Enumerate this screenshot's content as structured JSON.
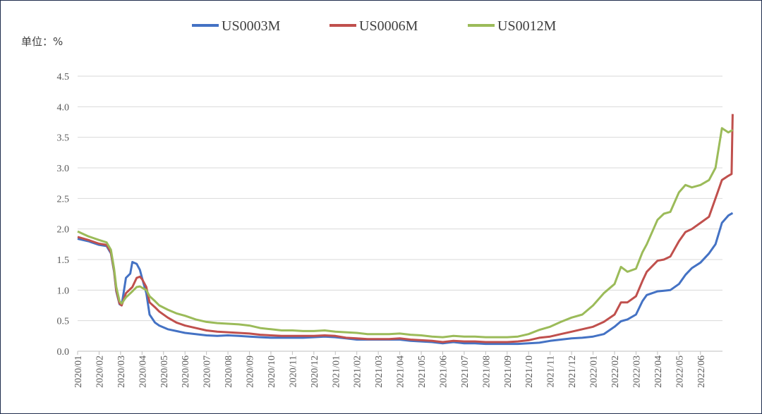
{
  "chart_data": {
    "type": "line",
    "unit_label": "单位：%",
    "x_tick_labels": [
      "2020/01",
      "2020/02",
      "2020/03",
      "2020/04",
      "2020/05",
      "2020/06",
      "2020/07",
      "2020/08",
      "2020/09",
      "2020/10",
      "2020/11",
      "2020/12",
      "2021/01",
      "2021/02",
      "2021/03",
      "2021/04",
      "2021/05",
      "2021/06",
      "2021/07",
      "2021/08",
      "2021/09",
      "2021/10",
      "2021/11",
      "2021/12",
      "2022/01",
      "2022/02",
      "2022/03",
      "2022/04",
      "2022/05",
      "2022/06"
    ],
    "y_tick_labels": [
      "0.0",
      "0.5",
      "1.0",
      "1.5",
      "2.0",
      "2.5",
      "3.0",
      "3.5",
      "4.0",
      "4.5"
    ],
    "ylim": [
      0,
      4.5
    ],
    "grid": true,
    "legend_position": "top",
    "series": [
      {
        "name": "US0003M",
        "color": "#4472c4",
        "points": [
          [
            0,
            1.84
          ],
          [
            0.5,
            1.8
          ],
          [
            1,
            1.74
          ],
          [
            1.35,
            1.72
          ],
          [
            1.55,
            1.6
          ],
          [
            1.7,
            1.3
          ],
          [
            1.8,
            0.98
          ],
          [
            1.95,
            0.77
          ],
          [
            2.05,
            0.75
          ],
          [
            2.25,
            1.2
          ],
          [
            2.45,
            1.27
          ],
          [
            2.55,
            1.46
          ],
          [
            2.75,
            1.43
          ],
          [
            2.9,
            1.33
          ],
          [
            3.0,
            1.2
          ],
          [
            3.2,
            0.95
          ],
          [
            3.35,
            0.6
          ],
          [
            3.6,
            0.47
          ],
          [
            3.8,
            0.42
          ],
          [
            4.2,
            0.36
          ],
          [
            4.6,
            0.33
          ],
          [
            5.0,
            0.3
          ],
          [
            5.5,
            0.28
          ],
          [
            6.0,
            0.26
          ],
          [
            6.5,
            0.25
          ],
          [
            7.0,
            0.26
          ],
          [
            7.5,
            0.25
          ],
          [
            8.0,
            0.24
          ],
          [
            8.5,
            0.23
          ],
          [
            9.0,
            0.22
          ],
          [
            9.5,
            0.22
          ],
          [
            10,
            0.22
          ],
          [
            10.5,
            0.22
          ],
          [
            11,
            0.23
          ],
          [
            11.5,
            0.24
          ],
          [
            12,
            0.23
          ],
          [
            12.5,
            0.21
          ],
          [
            13,
            0.19
          ],
          [
            13.5,
            0.19
          ],
          [
            14,
            0.19
          ],
          [
            14.5,
            0.19
          ],
          [
            15,
            0.19
          ],
          [
            15.5,
            0.17
          ],
          [
            16,
            0.16
          ],
          [
            16.5,
            0.15
          ],
          [
            17,
            0.13
          ],
          [
            17.5,
            0.15
          ],
          [
            18,
            0.13
          ],
          [
            18.5,
            0.13
          ],
          [
            19,
            0.12
          ],
          [
            19.5,
            0.12
          ],
          [
            20,
            0.12
          ],
          [
            20.5,
            0.12
          ],
          [
            21,
            0.13
          ],
          [
            21.5,
            0.14
          ],
          [
            22,
            0.17
          ],
          [
            22.5,
            0.19
          ],
          [
            23,
            0.21
          ],
          [
            23.5,
            0.22
          ],
          [
            24,
            0.24
          ],
          [
            24.5,
            0.28
          ],
          [
            25,
            0.4
          ],
          [
            25.3,
            0.49
          ],
          [
            25.6,
            0.52
          ],
          [
            26,
            0.6
          ],
          [
            26.3,
            0.82
          ],
          [
            26.5,
            0.92
          ],
          [
            27,
            0.98
          ],
          [
            27.3,
            0.99
          ],
          [
            27.6,
            1.0
          ],
          [
            28,
            1.1
          ],
          [
            28.3,
            1.25
          ],
          [
            28.6,
            1.36
          ],
          [
            29,
            1.45
          ],
          [
            29.4,
            1.6
          ],
          [
            29.7,
            1.75
          ],
          [
            30.0,
            2.1
          ],
          [
            30.3,
            2.22
          ],
          [
            30.5,
            2.26
          ]
        ]
      },
      {
        "name": "US0006M",
        "color": "#c0504d",
        "points": [
          [
            0,
            1.87
          ],
          [
            0.5,
            1.82
          ],
          [
            1,
            1.76
          ],
          [
            1.35,
            1.74
          ],
          [
            1.55,
            1.62
          ],
          [
            1.7,
            1.32
          ],
          [
            1.8,
            1.0
          ],
          [
            1.95,
            0.78
          ],
          [
            2.05,
            0.75
          ],
          [
            2.25,
            0.95
          ],
          [
            2.55,
            1.05
          ],
          [
            2.75,
            1.2
          ],
          [
            2.9,
            1.22
          ],
          [
            3.0,
            1.18
          ],
          [
            3.2,
            1.05
          ],
          [
            3.35,
            0.8
          ],
          [
            3.6,
            0.72
          ],
          [
            3.8,
            0.65
          ],
          [
            4.2,
            0.55
          ],
          [
            4.6,
            0.47
          ],
          [
            5.0,
            0.42
          ],
          [
            5.5,
            0.38
          ],
          [
            6.0,
            0.34
          ],
          [
            6.5,
            0.32
          ],
          [
            7.0,
            0.31
          ],
          [
            7.5,
            0.3
          ],
          [
            8.0,
            0.29
          ],
          [
            8.5,
            0.27
          ],
          [
            9.0,
            0.26
          ],
          [
            9.5,
            0.25
          ],
          [
            10,
            0.25
          ],
          [
            10.5,
            0.25
          ],
          [
            11,
            0.25
          ],
          [
            11.5,
            0.26
          ],
          [
            12,
            0.25
          ],
          [
            12.5,
            0.22
          ],
          [
            13,
            0.21
          ],
          [
            13.5,
            0.2
          ],
          [
            14,
            0.2
          ],
          [
            14.5,
            0.2
          ],
          [
            15,
            0.21
          ],
          [
            15.5,
            0.19
          ],
          [
            16,
            0.18
          ],
          [
            16.5,
            0.17
          ],
          [
            17,
            0.15
          ],
          [
            17.5,
            0.17
          ],
          [
            18,
            0.16
          ],
          [
            18.5,
            0.16
          ],
          [
            19,
            0.15
          ],
          [
            19.5,
            0.15
          ],
          [
            20,
            0.15
          ],
          [
            20.5,
            0.16
          ],
          [
            21,
            0.18
          ],
          [
            21.5,
            0.22
          ],
          [
            22,
            0.24
          ],
          [
            22.5,
            0.28
          ],
          [
            23,
            0.32
          ],
          [
            23.5,
            0.36
          ],
          [
            24,
            0.4
          ],
          [
            24.5,
            0.48
          ],
          [
            25,
            0.6
          ],
          [
            25.3,
            0.8
          ],
          [
            25.6,
            0.8
          ],
          [
            26,
            0.9
          ],
          [
            26.3,
            1.15
          ],
          [
            26.5,
            1.3
          ],
          [
            27,
            1.48
          ],
          [
            27.3,
            1.5
          ],
          [
            27.6,
            1.55
          ],
          [
            28,
            1.8
          ],
          [
            28.3,
            1.95
          ],
          [
            28.6,
            2.0
          ],
          [
            29,
            2.1
          ],
          [
            29.4,
            2.2
          ],
          [
            29.7,
            2.5
          ],
          [
            30.0,
            2.8
          ],
          [
            30.3,
            2.87
          ],
          [
            30.45,
            2.9
          ],
          [
            30.5,
            3.88
          ]
        ]
      },
      {
        "name": "US0012M",
        "color": "#9bbb59",
        "points": [
          [
            0,
            1.96
          ],
          [
            0.5,
            1.88
          ],
          [
            1,
            1.82
          ],
          [
            1.35,
            1.78
          ],
          [
            1.55,
            1.66
          ],
          [
            1.7,
            1.35
          ],
          [
            1.8,
            1.05
          ],
          [
            1.95,
            0.82
          ],
          [
            2.05,
            0.78
          ],
          [
            2.25,
            0.88
          ],
          [
            2.55,
            0.98
          ],
          [
            2.75,
            1.05
          ],
          [
            2.9,
            1.06
          ],
          [
            3.0,
            1.04
          ],
          [
            3.2,
            1.0
          ],
          [
            3.35,
            0.9
          ],
          [
            3.6,
            0.82
          ],
          [
            3.8,
            0.75
          ],
          [
            4.2,
            0.68
          ],
          [
            4.6,
            0.62
          ],
          [
            5.0,
            0.58
          ],
          [
            5.5,
            0.52
          ],
          [
            6.0,
            0.48
          ],
          [
            6.5,
            0.46
          ],
          [
            7.0,
            0.45
          ],
          [
            7.5,
            0.44
          ],
          [
            8.0,
            0.42
          ],
          [
            8.5,
            0.38
          ],
          [
            9.0,
            0.36
          ],
          [
            9.5,
            0.34
          ],
          [
            10,
            0.34
          ],
          [
            10.5,
            0.33
          ],
          [
            11,
            0.33
          ],
          [
            11.5,
            0.34
          ],
          [
            12,
            0.32
          ],
          [
            12.5,
            0.31
          ],
          [
            13,
            0.3
          ],
          [
            13.5,
            0.28
          ],
          [
            14,
            0.28
          ],
          [
            14.5,
            0.28
          ],
          [
            15,
            0.29
          ],
          [
            15.5,
            0.27
          ],
          [
            16,
            0.26
          ],
          [
            16.5,
            0.24
          ],
          [
            17,
            0.23
          ],
          [
            17.5,
            0.25
          ],
          [
            18,
            0.24
          ],
          [
            18.5,
            0.24
          ],
          [
            19,
            0.23
          ],
          [
            19.5,
            0.23
          ],
          [
            20,
            0.23
          ],
          [
            20.5,
            0.24
          ],
          [
            21,
            0.28
          ],
          [
            21.5,
            0.35
          ],
          [
            22,
            0.4
          ],
          [
            22.5,
            0.48
          ],
          [
            23,
            0.55
          ],
          [
            23.5,
            0.6
          ],
          [
            24,
            0.75
          ],
          [
            24.5,
            0.95
          ],
          [
            25,
            1.1
          ],
          [
            25.3,
            1.38
          ],
          [
            25.6,
            1.3
          ],
          [
            26,
            1.35
          ],
          [
            26.3,
            1.62
          ],
          [
            26.5,
            1.75
          ],
          [
            27,
            2.15
          ],
          [
            27.3,
            2.25
          ],
          [
            27.6,
            2.28
          ],
          [
            28,
            2.6
          ],
          [
            28.3,
            2.72
          ],
          [
            28.6,
            2.68
          ],
          [
            29,
            2.72
          ],
          [
            29.4,
            2.8
          ],
          [
            29.7,
            3.0
          ],
          [
            30.0,
            3.65
          ],
          [
            30.3,
            3.58
          ],
          [
            30.5,
            3.62
          ]
        ]
      }
    ]
  }
}
